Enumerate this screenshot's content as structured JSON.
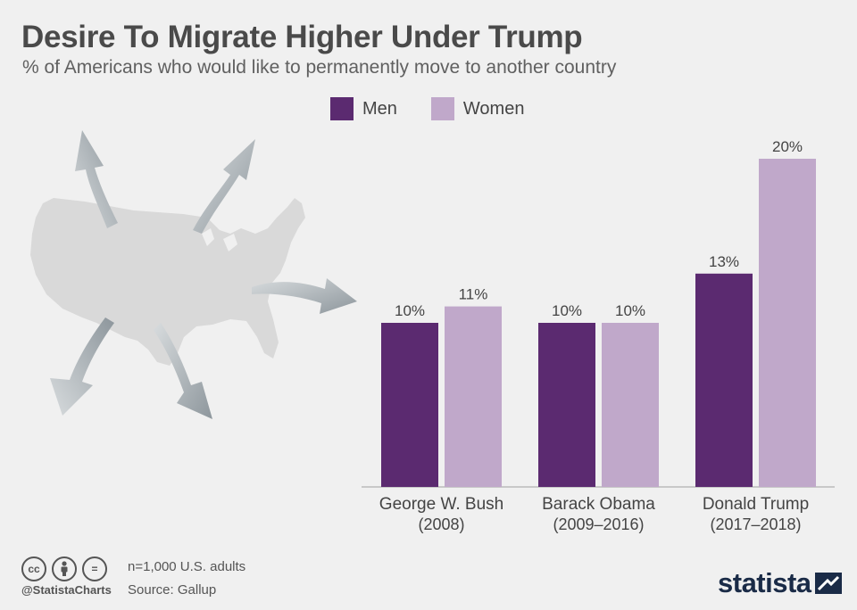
{
  "header": {
    "title": "Desire To Migrate Higher Under Trump",
    "subtitle": "% of Americans who would like to permanently move to another country"
  },
  "legend": [
    {
      "label": "Men",
      "color": "#5b2a70"
    },
    {
      "label": "Women",
      "color": "#c0a8ca"
    }
  ],
  "chart_data": {
    "type": "bar",
    "title": "Desire To Migrate Higher Under Trump",
    "subtitle": "% of Americans who would like to permanently move to another country",
    "categories": [
      {
        "name": "George W. Bush",
        "period": "(2008)"
      },
      {
        "name": "Barack Obama",
        "period": "(2009–2016)"
      },
      {
        "name": "Donald Trump",
        "period": "(2017–2018)"
      }
    ],
    "series": [
      {
        "name": "Men",
        "color": "#5b2a70",
        "values": [
          10,
          10,
          13
        ]
      },
      {
        "name": "Women",
        "color": "#c0a8ca",
        "values": [
          11,
          10,
          20
        ]
      }
    ],
    "value_suffix": "%",
    "ylim": [
      0,
      20
    ],
    "grid": false,
    "legend_position": "top"
  },
  "footer": {
    "note": "n=1,000 U.S. adults",
    "source": "Source: Gallup",
    "handle": "@StatistaCharts",
    "brand": "statista",
    "cc_icons": [
      "cc",
      "by",
      "="
    ]
  }
}
